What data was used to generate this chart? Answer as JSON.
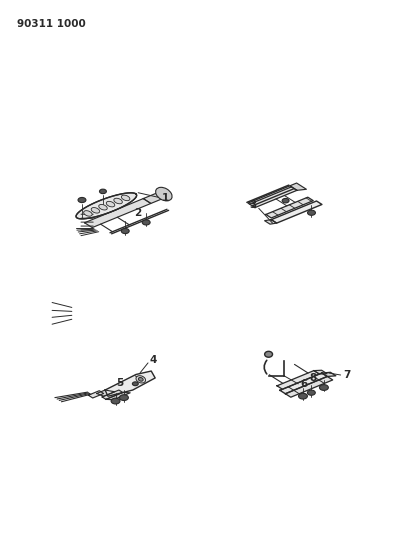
{
  "part_number": "90311 1000",
  "bg_color": "#ffffff",
  "line_color": "#2a2a2a",
  "fig_width": 4.06,
  "fig_height": 5.33,
  "dpi": 100
}
